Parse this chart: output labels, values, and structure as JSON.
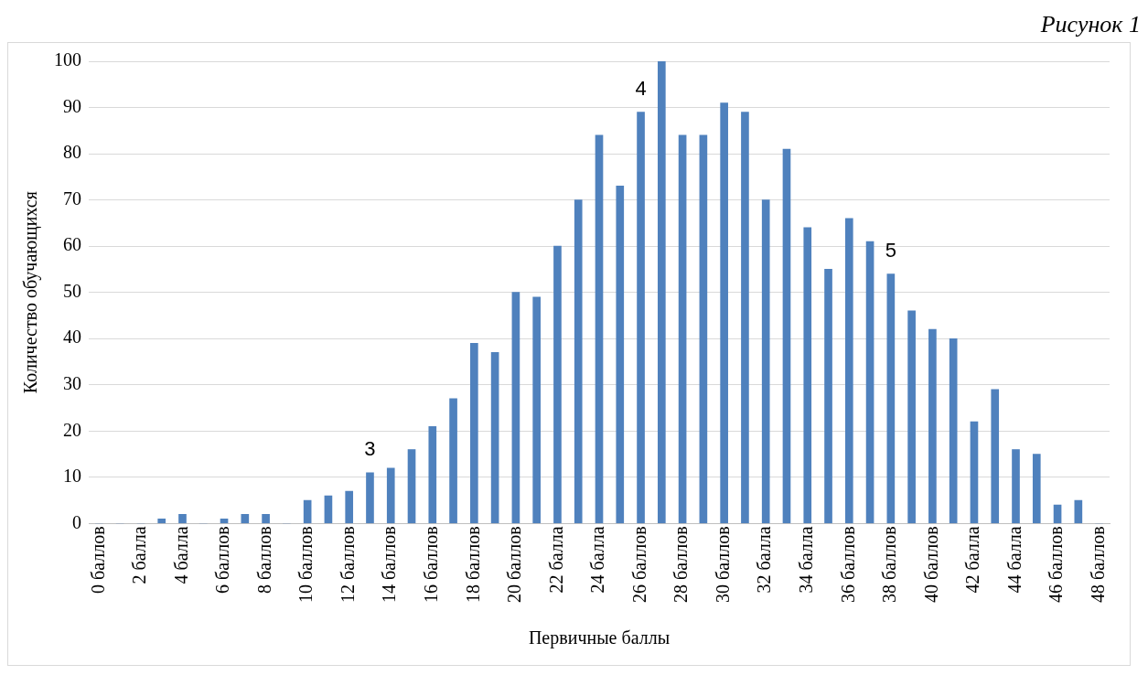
{
  "chart_data": {
    "type": "bar",
    "title": "Рисунок 1",
    "xlabel": "Первичные баллы",
    "ylabel": "Количество обучающихся",
    "x": [
      0,
      1,
      2,
      3,
      4,
      5,
      6,
      7,
      8,
      9,
      10,
      11,
      12,
      13,
      14,
      15,
      16,
      17,
      18,
      19,
      20,
      21,
      22,
      23,
      24,
      25,
      26,
      27,
      28,
      29,
      30,
      31,
      32,
      33,
      34,
      35,
      36,
      37,
      38,
      39,
      40,
      41,
      42,
      43,
      44,
      45,
      46,
      47,
      48
    ],
    "values": [
      0,
      0,
      0,
      1,
      2,
      0,
      1,
      2,
      2,
      0,
      5,
      6,
      7,
      11,
      12,
      16,
      21,
      27,
      39,
      37,
      50,
      49,
      60,
      70,
      84,
      73,
      89,
      100,
      84,
      84,
      91,
      89,
      70,
      81,
      64,
      55,
      66,
      61,
      54,
      46,
      42,
      40,
      22,
      29,
      16,
      15,
      4,
      5,
      0
    ],
    "color": "#4f81bd",
    "xlim": [
      -0.5,
      48.5
    ],
    "xticks": [
      {
        "value": 0,
        "label": "0 баллов"
      },
      {
        "value": 2,
        "label": "2 балла"
      },
      {
        "value": 4,
        "label": "4 балла"
      },
      {
        "value": 6,
        "label": "6 баллов"
      },
      {
        "value": 8,
        "label": "8 баллов"
      },
      {
        "value": 10,
        "label": "10 баллов"
      },
      {
        "value": 12,
        "label": "12 баллов"
      },
      {
        "value": 14,
        "label": "14 баллов"
      },
      {
        "value": 16,
        "label": "16 баллов"
      },
      {
        "value": 18,
        "label": "18 баллов"
      },
      {
        "value": 20,
        "label": "20 баллов"
      },
      {
        "value": 22,
        "label": "22 балла"
      },
      {
        "value": 24,
        "label": "24 балла"
      },
      {
        "value": 26,
        "label": "26 баллов"
      },
      {
        "value": 28,
        "label": "28 баллов"
      },
      {
        "value": 30,
        "label": "30 баллов"
      },
      {
        "value": 32,
        "label": "32 балла"
      },
      {
        "value": 34,
        "label": "34 балла"
      },
      {
        "value": 36,
        "label": "36 баллов"
      },
      {
        "value": 38,
        "label": "38 баллов"
      },
      {
        "value": 40,
        "label": "40 баллов"
      },
      {
        "value": 42,
        "label": "42 балла"
      },
      {
        "value": 44,
        "label": "44 балла"
      },
      {
        "value": 46,
        "label": "46 баллов"
      },
      {
        "value": 48,
        "label": "48 баллов"
      }
    ],
    "ylim": [
      0,
      100
    ],
    "yticks": [
      0,
      10,
      20,
      30,
      40,
      50,
      60,
      70,
      80,
      90,
      100
    ],
    "grid": "y",
    "annotations": [
      {
        "text": "3",
        "x": 13,
        "y": 11
      },
      {
        "text": "4",
        "x": 26,
        "y": 89
      },
      {
        "text": "5",
        "x": 38,
        "y": 54
      }
    ]
  }
}
